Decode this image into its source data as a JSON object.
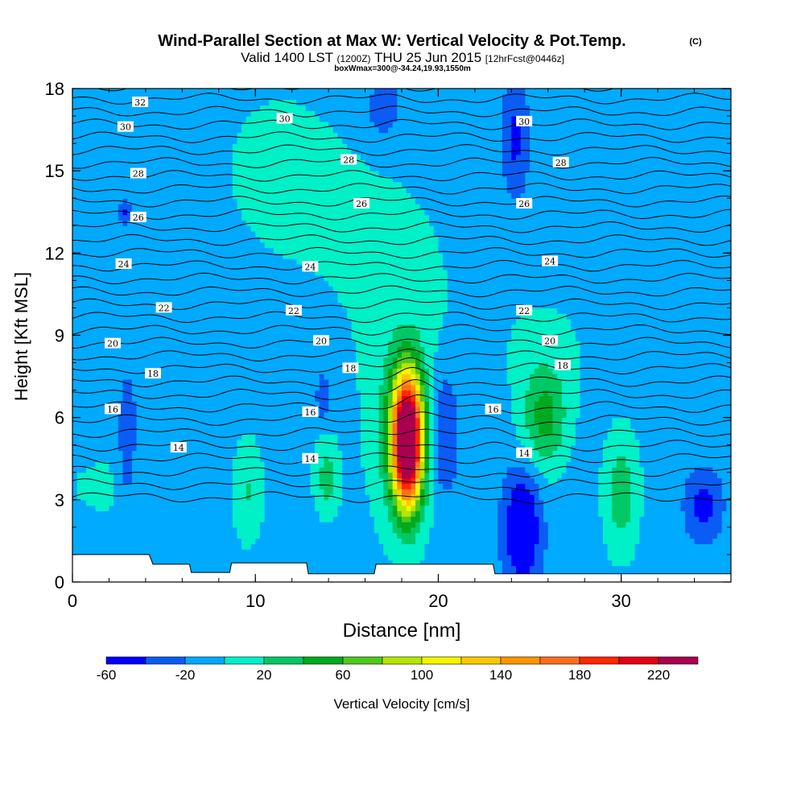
{
  "header": {
    "title": "Wind-Parallel Section at Max W: Vertical Velocity & Pot.Temp.",
    "copyright": "(C)",
    "valid_prefix": "Valid 1400 LST",
    "valid_utc": "(1200Z)",
    "valid_date": "THU 25 Jun 2015",
    "forecast": "[12hrFcst@0446z]",
    "subinfo": "boxWmax=300@-34.24,19.93,1550m"
  },
  "chart_data": {
    "type": "heatmap",
    "xlabel": "Distance [nm]",
    "ylabel": "Height [Kft MSL]",
    "xlim": [
      0,
      36
    ],
    "ylim": [
      0,
      18
    ],
    "xticks": [
      0,
      10,
      20,
      30
    ],
    "yticks": [
      0,
      3,
      6,
      9,
      12,
      15,
      18
    ],
    "colorbar": {
      "label": "Vertical Velocity [cm/s]",
      "tick_labels": [
        "-60",
        "-20",
        "20",
        "60",
        "100",
        "140",
        "180",
        "220"
      ],
      "tick_values": [
        -60,
        -20,
        20,
        60,
        100,
        140,
        180,
        220
      ],
      "levels": [
        -60,
        -40,
        -20,
        0,
        20,
        40,
        60,
        80,
        100,
        120,
        140,
        160,
        180,
        200,
        220,
        240
      ],
      "colors": [
        "#0000ff",
        "#0a5cf5",
        "#00aaff",
        "#00f0c8",
        "#00c864",
        "#00aa1e",
        "#50c81e",
        "#b4e600",
        "#f5f500",
        "#ffc800",
        "#ff9600",
        "#ff6e1e",
        "#ff2800",
        "#e60014",
        "#aa0050"
      ]
    },
    "background_value": -10,
    "features": [
      {
        "kind": "updraft",
        "x": 18.3,
        "y": 5.2,
        "sx": 0.55,
        "sy": 1.6,
        "peak": 300
      },
      {
        "kind": "updraft",
        "x": 18.1,
        "y": 5.2,
        "sx": 1.3,
        "sy": 2.6,
        "peak": 40
      },
      {
        "kind": "updraft",
        "x": 25.8,
        "y": 6.0,
        "sx": 0.9,
        "sy": 1.4,
        "peak": 55
      },
      {
        "kind": "updraft",
        "x": 30.0,
        "y": 3.2,
        "sx": 0.7,
        "sy": 1.6,
        "peak": 42
      },
      {
        "kind": "updraft",
        "x": 13.9,
        "y": 3.8,
        "sx": 0.5,
        "sy": 1.0,
        "peak": 38
      },
      {
        "kind": "updraft",
        "x": 9.6,
        "y": 3.3,
        "sx": 0.6,
        "sy": 1.4,
        "peak": 30
      },
      {
        "kind": "updraft",
        "x": 11.2,
        "y": 15.0,
        "sx": 3.0,
        "sy": 3.0,
        "peak": 14
      },
      {
        "kind": "updraft",
        "x": 17.5,
        "y": 11.5,
        "sx": 3.0,
        "sy": 3.5,
        "peak": 13
      },
      {
        "kind": "updraft",
        "x": 26.0,
        "y": 9.0,
        "sx": 3.5,
        "sy": 2.0,
        "peak": 10
      },
      {
        "kind": "updraft",
        "x": 2.0,
        "y": 3.5,
        "sx": 3.0,
        "sy": 1.5,
        "peak": 12
      },
      {
        "kind": "downdraft",
        "x": 20.3,
        "y": 5.5,
        "sx": 0.55,
        "sy": 1.7,
        "peak": -40
      },
      {
        "kind": "downdraft",
        "x": 24.6,
        "y": 2.0,
        "sx": 0.7,
        "sy": 1.5,
        "peak": -62
      },
      {
        "kind": "downdraft",
        "x": 3.0,
        "y": 5.0,
        "sx": 0.35,
        "sy": 1.6,
        "peak": -32
      },
      {
        "kind": "downdraft",
        "x": 34.5,
        "y": 2.8,
        "sx": 0.7,
        "sy": 0.9,
        "peak": -38
      },
      {
        "kind": "downdraft",
        "x": 24.2,
        "y": 16.2,
        "sx": 0.5,
        "sy": 1.5,
        "peak": -35
      },
      {
        "kind": "downdraft",
        "x": 17.0,
        "y": 17.3,
        "sx": 0.6,
        "sy": 0.8,
        "peak": -32
      },
      {
        "kind": "downdraft",
        "x": 13.7,
        "y": 6.8,
        "sx": 0.25,
        "sy": 0.6,
        "peak": -32
      },
      {
        "kind": "downdraft",
        "x": 2.9,
        "y": 13.5,
        "sx": 0.3,
        "sy": 0.3,
        "peak": -32
      }
    ],
    "terrain": [
      [
        0,
        1.0
      ],
      [
        4.2,
        1.0
      ],
      [
        4.4,
        0.65
      ],
      [
        6.4,
        0.65
      ],
      [
        6.5,
        0.35
      ],
      [
        8.6,
        0.35
      ],
      [
        8.7,
        0.7
      ],
      [
        12.8,
        0.7
      ],
      [
        12.9,
        0.3
      ],
      [
        16.5,
        0.3
      ],
      [
        16.6,
        0.65
      ],
      [
        23.0,
        0.65
      ],
      [
        23.1,
        0.3
      ],
      [
        36,
        0.3
      ]
    ],
    "isentropes": {
      "base_level": 12,
      "step": 1,
      "count": 33,
      "bottom_height": 3.1,
      "top_height": 18.1
    },
    "isentrope_labels": [
      {
        "text": "32",
        "x": 3.7,
        "y": 17.5
      },
      {
        "text": "30",
        "x": 2.9,
        "y": 16.6
      },
      {
        "text": "30",
        "x": 11.6,
        "y": 16.9
      },
      {
        "text": "30",
        "x": 24.7,
        "y": 16.8
      },
      {
        "text": "28",
        "x": 3.6,
        "y": 14.9
      },
      {
        "text": "28",
        "x": 15.1,
        "y": 15.4
      },
      {
        "text": "28",
        "x": 26.7,
        "y": 15.3
      },
      {
        "text": "26",
        "x": 3.6,
        "y": 13.3
      },
      {
        "text": "26",
        "x": 15.8,
        "y": 13.8
      },
      {
        "text": "26",
        "x": 24.7,
        "y": 13.8
      },
      {
        "text": "24",
        "x": 2.8,
        "y": 11.6
      },
      {
        "text": "24",
        "x": 13.0,
        "y": 11.5
      },
      {
        "text": "24",
        "x": 26.1,
        "y": 11.7
      },
      {
        "text": "22",
        "x": 5.0,
        "y": 10.0
      },
      {
        "text": "22",
        "x": 12.1,
        "y": 9.9
      },
      {
        "text": "22",
        "x": 24.7,
        "y": 9.9
      },
      {
        "text": "20",
        "x": 2.2,
        "y": 8.7
      },
      {
        "text": "20",
        "x": 13.6,
        "y": 8.8
      },
      {
        "text": "20",
        "x": 26.1,
        "y": 8.8
      },
      {
        "text": "18",
        "x": 4.4,
        "y": 7.6
      },
      {
        "text": "18",
        "x": 15.2,
        "y": 7.8
      },
      {
        "text": "18",
        "x": 26.8,
        "y": 7.9
      },
      {
        "text": "16",
        "x": 2.2,
        "y": 6.3
      },
      {
        "text": "16",
        "x": 13.0,
        "y": 6.2
      },
      {
        "text": "16",
        "x": 23.0,
        "y": 6.3
      },
      {
        "text": "14",
        "x": 5.8,
        "y": 4.9
      },
      {
        "text": "14",
        "x": 13.0,
        "y": 4.5
      },
      {
        "text": "14",
        "x": 24.7,
        "y": 4.7
      }
    ]
  }
}
